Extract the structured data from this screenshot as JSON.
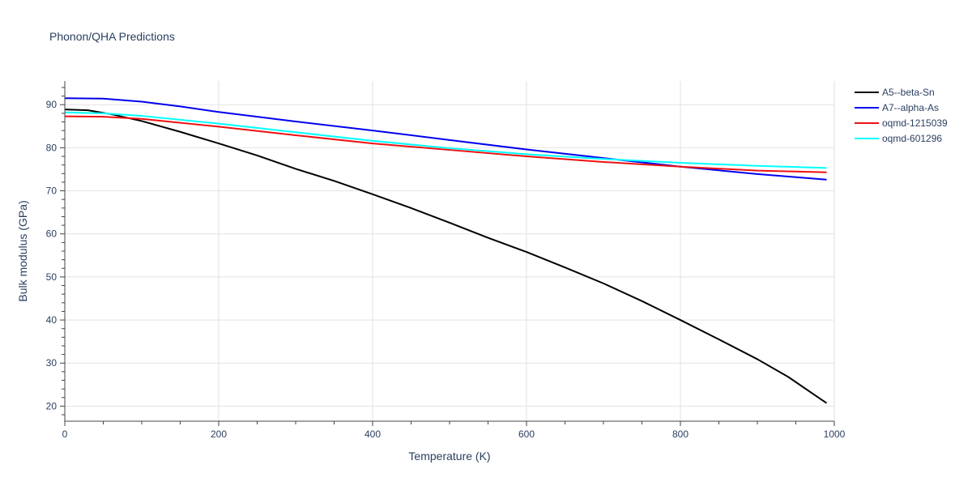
{
  "chart_data": {
    "type": "line",
    "title": "Phonon/QHA Predictions",
    "xlabel": "Temperature (K)",
    "ylabel": "Bulk modulus (GPa)",
    "xlim": [
      0,
      1000
    ],
    "ylim": [
      16.5,
      95.5
    ],
    "x_ticks": [
      0,
      200,
      400,
      600,
      800,
      1000
    ],
    "y_ticks": [
      20,
      30,
      40,
      50,
      60,
      70,
      80,
      90
    ],
    "x_tick_labels": [
      "0",
      "200",
      "400",
      "600",
      "800",
      "1000"
    ],
    "y_tick_labels": [
      "20",
      "30",
      "40",
      "50",
      "60",
      "70",
      "80",
      "90"
    ],
    "grid": true,
    "legend_position": "right",
    "series": [
      {
        "name": "A5--beta-Sn",
        "color": "#000000",
        "x": [
          0,
          30,
          60,
          100,
          150,
          200,
          250,
          300,
          350,
          400,
          450,
          500,
          550,
          600,
          650,
          700,
          750,
          800,
          850,
          900,
          940,
          990
        ],
        "y": [
          88.9,
          88.7,
          87.8,
          86.2,
          83.7,
          81.0,
          78.2,
          75.1,
          72.3,
          69.2,
          66.0,
          62.6,
          59.1,
          55.8,
          52.2,
          48.5,
          44.4,
          40.0,
          35.5,
          30.9,
          26.8,
          20.7
        ]
      },
      {
        "name": "A7--alpha-As",
        "color": "#0000ee",
        "x": [
          0,
          50,
          100,
          150,
          200,
          300,
          400,
          500,
          600,
          700,
          800,
          900,
          990
        ],
        "y": [
          91.5,
          91.4,
          90.7,
          89.6,
          88.3,
          86.1,
          84.0,
          81.8,
          79.6,
          77.6,
          75.6,
          73.9,
          72.6
        ]
      },
      {
        "name": "oqmd-1215039",
        "color": "#ee1111",
        "x": [
          0,
          50,
          100,
          200,
          300,
          400,
          500,
          600,
          700,
          800,
          900,
          990
        ],
        "y": [
          87.3,
          87.2,
          86.7,
          84.9,
          82.9,
          81.0,
          79.5,
          78.0,
          76.7,
          75.6,
          74.7,
          74.3
        ]
      },
      {
        "name": "oqmd-601296",
        "color": "#00ffff",
        "x": [
          0,
          50,
          100,
          200,
          300,
          400,
          500,
          600,
          700,
          800,
          900,
          990
        ],
        "y": [
          88.2,
          88.0,
          87.4,
          85.6,
          83.6,
          81.6,
          79.9,
          78.5,
          77.4,
          76.5,
          75.8,
          75.3
        ]
      }
    ]
  }
}
